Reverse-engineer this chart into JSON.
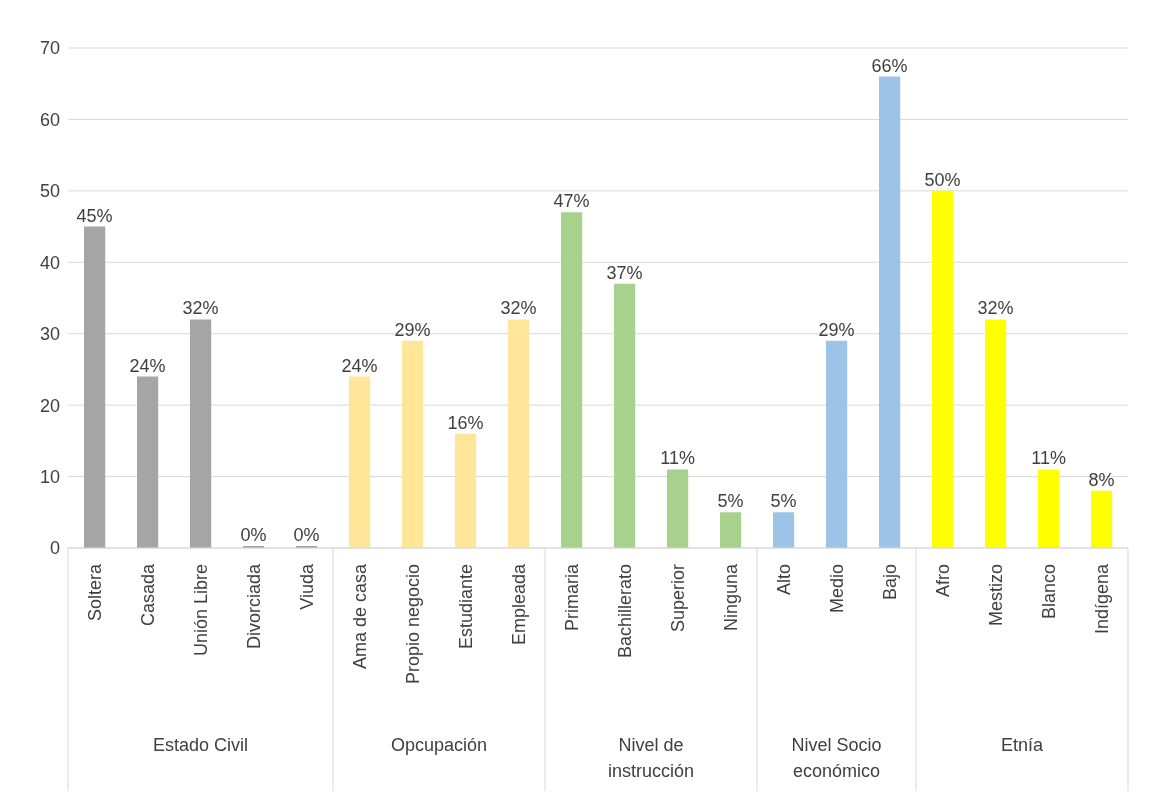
{
  "chart_data": {
    "type": "bar",
    "categories": [
      "Soltera",
      "Casada",
      "Unión Libre",
      "Divorciada",
      "Viuda",
      "Ama de casa",
      "Propio negocio",
      "Estudiante",
      "Empleada",
      "Primaria",
      "Bachillerato",
      "Superior",
      "Ninguna",
      "Alto",
      "Medio",
      "Bajo",
      "Afro",
      "Mestizo",
      "Blanco",
      "Indígena"
    ],
    "values": [
      45,
      24,
      32,
      0,
      0,
      24,
      29,
      16,
      32,
      47,
      37,
      11,
      5,
      5,
      29,
      66,
      50,
      32,
      11,
      8
    ],
    "value_labels": [
      "45%",
      "24%",
      "32%",
      "0%",
      "0%",
      "24%",
      "29%",
      "16%",
      "32%",
      "47%",
      "37%",
      "11%",
      "5%",
      "5%",
      "29%",
      "66%",
      "50%",
      "32%",
      "11%",
      "8%"
    ],
    "colors": [
      "#a5a5a5",
      "#a5a5a5",
      "#a5a5a5",
      "#a5a5a5",
      "#a5a5a5",
      "#ffe699",
      "#ffe699",
      "#ffe699",
      "#ffe699",
      "#a9d18e",
      "#a9d18e",
      "#a9d18e",
      "#a9d18e",
      "#9dc3e6",
      "#9dc3e6",
      "#9dc3e6",
      "#ffff00",
      "#ffff00",
      "#ffff00",
      "#ffff00"
    ],
    "annotations": [
      "Estado Civil",
      "Opcupación",
      "Nivel de instrucción",
      "Nivel Socio económico",
      "Etnía"
    ],
    "ylim": [
      0,
      70
    ],
    "yticks": [
      0,
      10,
      20,
      30,
      40,
      50,
      60,
      70
    ],
    "grid": "y"
  }
}
